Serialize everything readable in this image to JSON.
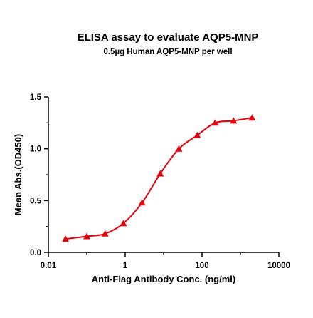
{
  "chart_data": {
    "type": "scatter",
    "title": "ELISA assay to evaluate AQP5-MNP",
    "subtitle": "0.5µg Human AQP5-MNP per well",
    "xlabel": "Anti-Flag Antibody Conc. (ng/ml)",
    "ylabel": "Mean Abs.(OD450)",
    "xscale": "log",
    "xlim": [
      0.01,
      10000
    ],
    "ylim": [
      0.0,
      1.5
    ],
    "x_ticks": [
      0.01,
      1,
      100,
      10000
    ],
    "x_tick_labels": [
      "0.01",
      "1",
      "100",
      "10000"
    ],
    "y_ticks": [
      0.0,
      0.5,
      1.0,
      1.5
    ],
    "y_tick_labels": [
      "0.0",
      "0.5",
      "1.0",
      "1.5"
    ],
    "grid": false,
    "colors": {
      "series": "#e8000b",
      "axis": "#000000"
    },
    "series": [
      {
        "marker": "triangle",
        "fit": "4PL sigmoid",
        "x": [
          0.028,
          0.1,
          0.3,
          0.9,
          2.75,
          8.2,
          25,
          75,
          220,
          660,
          2000
        ],
        "y": [
          0.13,
          0.155,
          0.18,
          0.28,
          0.48,
          0.76,
          1.0,
          1.13,
          1.25,
          1.27,
          1.3
        ]
      }
    ]
  }
}
